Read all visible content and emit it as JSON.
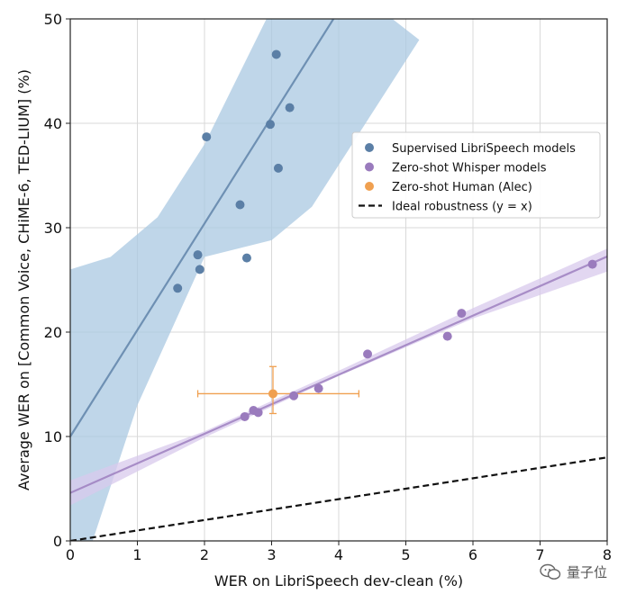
{
  "chart_data": {
    "type": "scatter",
    "xlabel": "WER on LibriSpeech dev-clean (%)",
    "ylabel": "Average WER on [Common Voice, CHiME-6, TED-LIUM] (%)",
    "xlim": [
      0,
      8
    ],
    "ylim": [
      0,
      50
    ],
    "xticks": [
      0,
      1,
      2,
      3,
      4,
      5,
      6,
      7,
      8
    ],
    "yticks": [
      0,
      10,
      20,
      30,
      40,
      50
    ],
    "grid": true,
    "legend_position": "right",
    "series": [
      {
        "name": "Supervised LibriSpeech models",
        "color": "#5b7fa6",
        "marker": "circle",
        "points": [
          {
            "x": 1.6,
            "y": 24.2
          },
          {
            "x": 1.9,
            "y": 27.4
          },
          {
            "x": 1.93,
            "y": 26.0
          },
          {
            "x": 2.03,
            "y": 38.7
          },
          {
            "x": 2.53,
            "y": 32.2
          },
          {
            "x": 2.63,
            "y": 27.1
          },
          {
            "x": 2.98,
            "y": 39.9
          },
          {
            "x": 3.07,
            "y": 46.6
          },
          {
            "x": 3.1,
            "y": 35.7
          },
          {
            "x": 3.27,
            "y": 41.5
          }
        ],
        "fit": {
          "intercept": 10.0,
          "slope": 10.2
        },
        "band": {
          "color": "#a9c8e2",
          "lower": [
            [
              0,
              -6.5
            ],
            [
              1,
              13.0
            ],
            [
              2,
              27.2
            ],
            [
              3,
              28.8
            ],
            [
              3.6,
              32.0
            ],
            [
              4.4,
              40.0
            ],
            [
              5.2,
              48.0
            ]
          ],
          "upper": [
            [
              0,
              26.0
            ],
            [
              0.6,
              27.2
            ],
            [
              1.3,
              31.0
            ],
            [
              2.0,
              38.0
            ],
            [
              2.5,
              44.5
            ],
            [
              3.0,
              51.0
            ],
            [
              4.0,
              54.0
            ]
          ]
        }
      },
      {
        "name": "Zero-shot Whisper models",
        "color": "#9a7bbd",
        "marker": "circle",
        "points": [
          {
            "x": 2.6,
            "y": 11.9
          },
          {
            "x": 2.73,
            "y": 12.5
          },
          {
            "x": 2.8,
            "y": 12.3
          },
          {
            "x": 3.33,
            "y": 13.9
          },
          {
            "x": 3.7,
            "y": 14.6
          },
          {
            "x": 4.43,
            "y": 17.9
          },
          {
            "x": 5.62,
            "y": 19.6
          },
          {
            "x": 5.83,
            "y": 21.8
          },
          {
            "x": 7.78,
            "y": 26.5
          }
        ],
        "fit": {
          "intercept": 4.6,
          "slope": 2.83
        },
        "band": {
          "color": "#d8c9ec",
          "lower": [
            [
              0,
              3.4
            ],
            [
              2,
              9.9
            ],
            [
              4,
              15.8
            ],
            [
              6,
              21.3
            ],
            [
              8,
              25.8
            ]
          ],
          "upper": [
            [
              0,
              5.8
            ],
            [
              2,
              10.5
            ],
            [
              4,
              16.3
            ],
            [
              6,
              22.3
            ],
            [
              8,
              28.0
            ]
          ]
        }
      },
      {
        "name": "Zero-shot Human (Alec)",
        "color": "#f0a050",
        "marker": "circle",
        "points": [
          {
            "x": 3.02,
            "y": 14.1
          }
        ],
        "error_x": [
          1.9,
          4.3
        ],
        "error_y": [
          12.2,
          16.7
        ]
      },
      {
        "name": "Ideal robustness (y = x)",
        "color": "#111111",
        "line_style": "dashed",
        "line": [
          [
            0,
            0
          ],
          [
            8,
            8
          ]
        ]
      }
    ]
  },
  "watermark": {
    "text": "量子位",
    "icon": "wechat-icon"
  }
}
